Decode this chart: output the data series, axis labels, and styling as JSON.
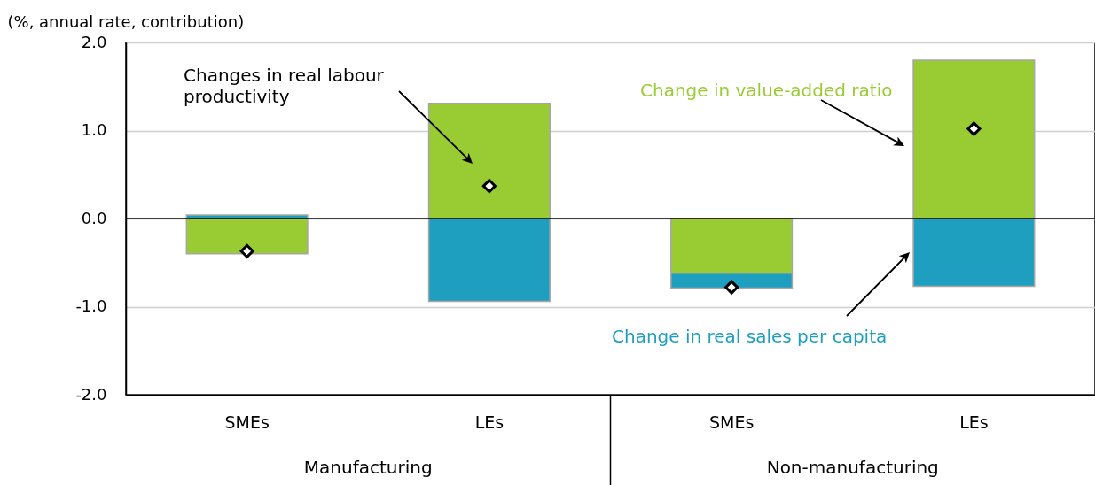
{
  "chart_data": {
    "type": "bar",
    "stacked": true,
    "ylabel": "(%, annual rate, contribution)",
    "categories": [
      "SMEs",
      "LEs",
      "SMEs",
      "LEs"
    ],
    "series": [
      {
        "name": "Change in value-added ratio",
        "color": "#99cc33",
        "values": [
          -0.4,
          1.31,
          -0.62,
          1.8
        ]
      },
      {
        "name": "Change in real sales per capita",
        "color": "#1f9fbf",
        "values": [
          0.04,
          -0.94,
          -0.17,
          -0.77
        ]
      },
      {
        "name": "Changes in real labour productivity",
        "type": "scatter",
        "color": "#000000",
        "values": [
          -0.37,
          0.37,
          -0.78,
          1.02
        ]
      }
    ],
    "ylim": [
      -2,
      2
    ],
    "yticks": [
      {
        "value": -2,
        "label": "-2.0"
      },
      {
        "value": -1,
        "label": "-1.0"
      },
      {
        "value": 0,
        "label": "0.0"
      },
      {
        "value": 1,
        "label": "1.0"
      },
      {
        "value": 2,
        "label": "2.0"
      }
    ],
    "grid": "y",
    "legend": false,
    "marker": "diamond",
    "ref_lines": [
      {
        "axis": "y",
        "value": 0,
        "color": "#000000"
      }
    ],
    "annotations": [
      "Manufacturing",
      "Non-manufacturing"
    ]
  }
}
